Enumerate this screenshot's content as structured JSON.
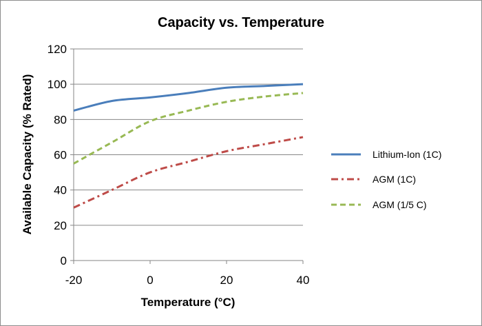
{
  "chart_data": {
    "type": "line",
    "title": "Capacity vs. Temperature",
    "xlabel": "Temperature (°C)",
    "ylabel": "Available Capacity (% Rated)",
    "xlim": [
      -20,
      40
    ],
    "ylim": [
      0,
      120
    ],
    "xticks": [
      -20,
      0,
      20,
      40
    ],
    "yticks": [
      0,
      20,
      40,
      60,
      80,
      100,
      120
    ],
    "grid": "horizontal",
    "legend_position": "right",
    "series": [
      {
        "name": "Lithium-Ion (1C)",
        "color": "#4a7ebb",
        "dash": "solid",
        "points": [
          [
            -20,
            85
          ],
          [
            -10,
            90.5
          ],
          [
            0,
            92.5
          ],
          [
            10,
            95
          ],
          [
            20,
            98
          ],
          [
            30,
            99
          ],
          [
            40,
            100
          ]
        ]
      },
      {
        "name": "AGM (1C)",
        "color": "#be4b48",
        "dash": "dashdot",
        "points": [
          [
            -20,
            30
          ],
          [
            -10,
            40
          ],
          [
            0,
            50
          ],
          [
            10,
            56
          ],
          [
            20,
            62
          ],
          [
            30,
            66
          ],
          [
            40,
            70
          ]
        ]
      },
      {
        "name": "AGM (1/5 C)",
        "color": "#98b954",
        "dash": "dash",
        "points": [
          [
            -20,
            55
          ],
          [
            -10,
            67
          ],
          [
            0,
            79
          ],
          [
            10,
            85
          ],
          [
            20,
            90
          ],
          [
            30,
            93
          ],
          [
            40,
            95
          ]
        ]
      }
    ]
  }
}
